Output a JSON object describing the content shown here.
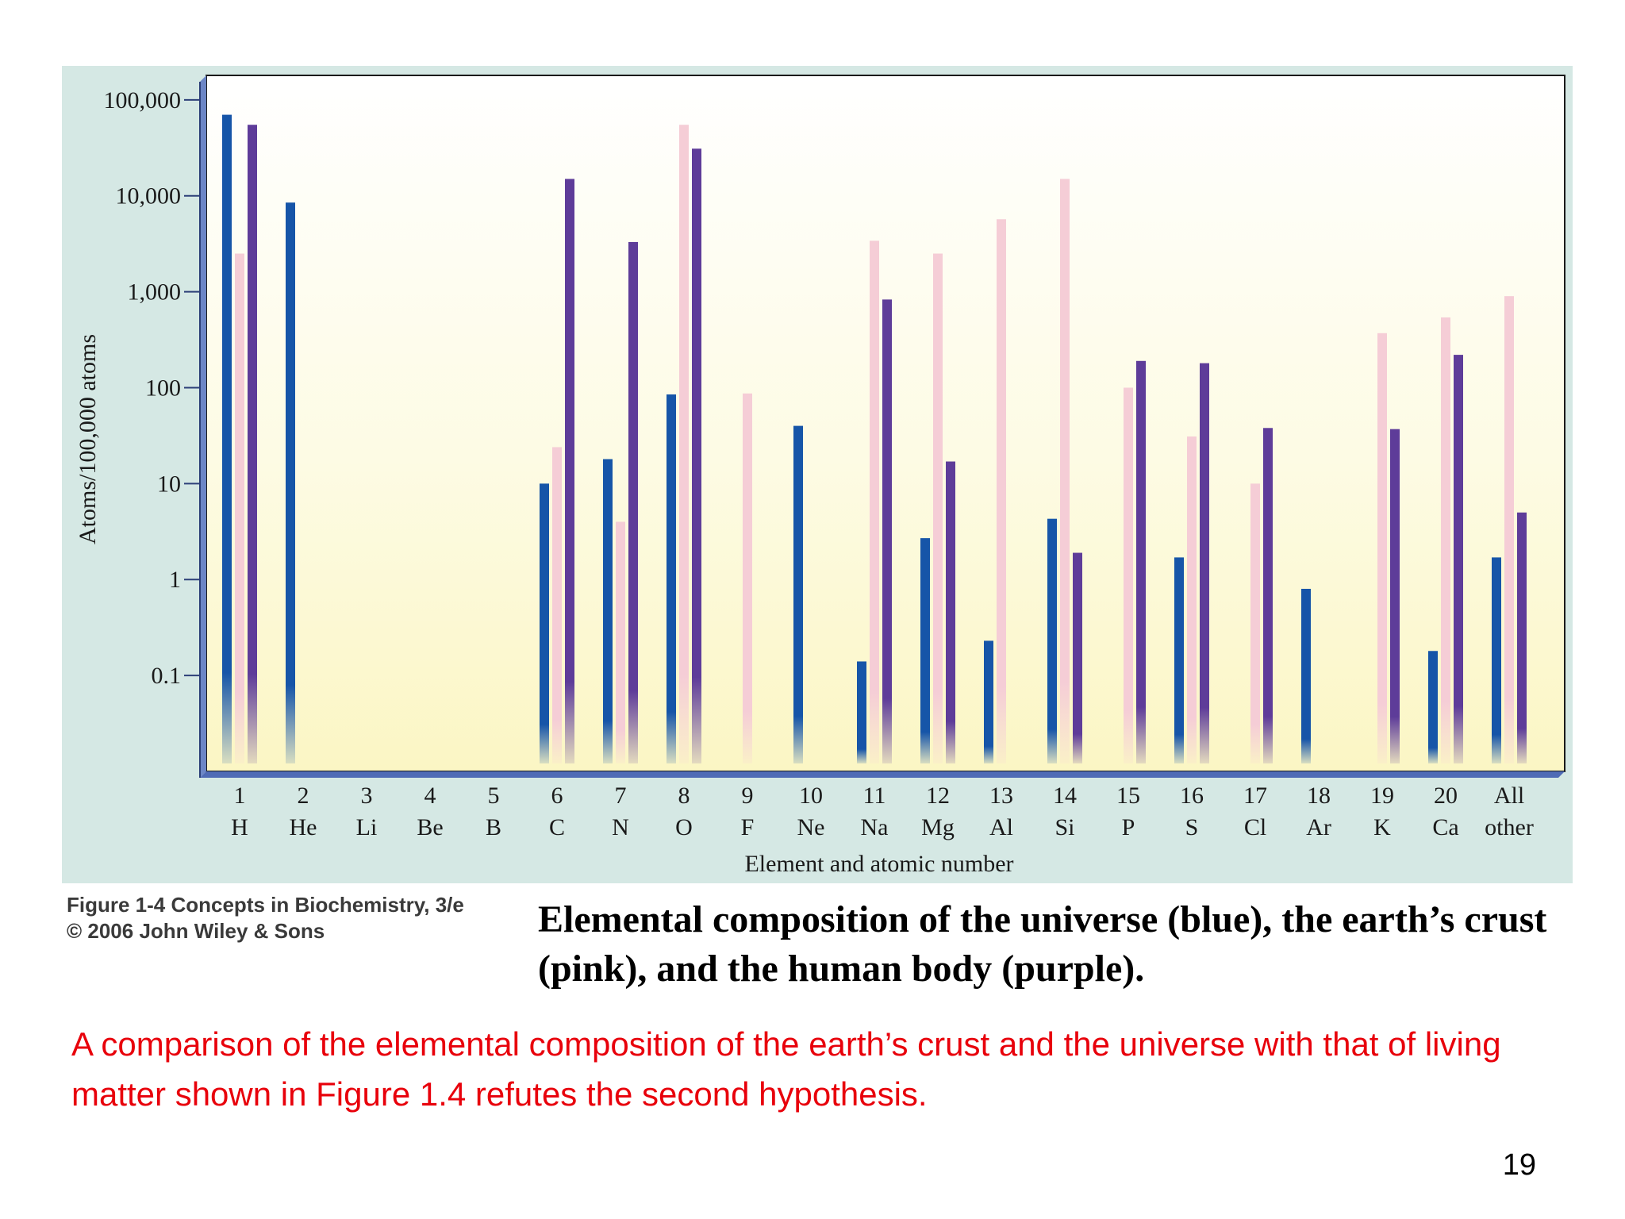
{
  "slide": {
    "caption": "Elemental composition of the universe (blue), the earth’s crust (pink), and the human body (purple).",
    "credit_line1": "Figure 1-4  Concepts in Biochemistry, 3/e",
    "credit_line2": "© 2006 John Wiley & Sons",
    "note": "A comparison of the elemental composition of the earth’s crust and the universe with that of living matter shown in Figure 1.4 refutes the second hypothesis.",
    "page_number": "19"
  },
  "colors": {
    "panel_background": "#d5e8e4",
    "universe": "#1655a8",
    "earth_crust": "#f5cdd6",
    "human_body": "#5e3c99",
    "note_text": "#e8000b"
  },
  "chart_data": {
    "type": "bar",
    "title": "",
    "xlabel": "Element and atomic number",
    "ylabel": "Atoms/100,000 atoms",
    "scale": "log",
    "ylim": [
      0.01,
      180000
    ],
    "yticks": [
      0.1,
      1,
      10,
      100,
      1000,
      10000,
      100000
    ],
    "ytick_labels": [
      "0.1",
      "1",
      "10",
      "100",
      "1,000",
      "10,000",
      "100,000"
    ],
    "grid": false,
    "categories": [
      {
        "number": "1",
        "symbol": "H"
      },
      {
        "number": "2",
        "symbol": "He"
      },
      {
        "number": "3",
        "symbol": "Li"
      },
      {
        "number": "4",
        "symbol": "Be"
      },
      {
        "number": "5",
        "symbol": "B"
      },
      {
        "number": "6",
        "symbol": "C"
      },
      {
        "number": "7",
        "symbol": "N"
      },
      {
        "number": "8",
        "symbol": "O"
      },
      {
        "number": "9",
        "symbol": "F"
      },
      {
        "number": "10",
        "symbol": "Ne"
      },
      {
        "number": "11",
        "symbol": "Na"
      },
      {
        "number": "12",
        "symbol": "Mg"
      },
      {
        "number": "13",
        "symbol": "Al"
      },
      {
        "number": "14",
        "symbol": "Si"
      },
      {
        "number": "15",
        "symbol": "P"
      },
      {
        "number": "16",
        "symbol": "S"
      },
      {
        "number": "17",
        "symbol": "Cl"
      },
      {
        "number": "18",
        "symbol": "Ar"
      },
      {
        "number": "19",
        "symbol": "K"
      },
      {
        "number": "20",
        "symbol": "Ca"
      },
      {
        "number": "All",
        "symbol": "other"
      }
    ],
    "series": [
      {
        "color": "#1655a8",
        "values": [
          70000,
          8500,
          null,
          null,
          null,
          10,
          18,
          85,
          null,
          40,
          0.14,
          2.7,
          0.23,
          4.3,
          null,
          1.7,
          null,
          0.8,
          null,
          0.18,
          1.7
        ]
      },
      {
        "color": "#f5cdd6",
        "values": [
          2500,
          null,
          null,
          null,
          null,
          24,
          4,
          55000,
          87,
          null,
          3400,
          2500,
          5700,
          15000,
          100,
          31,
          10,
          null,
          370,
          540,
          900
        ]
      },
      {
        "color": "#5e3c99",
        "values": [
          55000,
          null,
          null,
          null,
          null,
          15000,
          3300,
          31000,
          null,
          null,
          830,
          17,
          null,
          1.9,
          190,
          180,
          38,
          null,
          37,
          220,
          5
        ]
      }
    ]
  }
}
